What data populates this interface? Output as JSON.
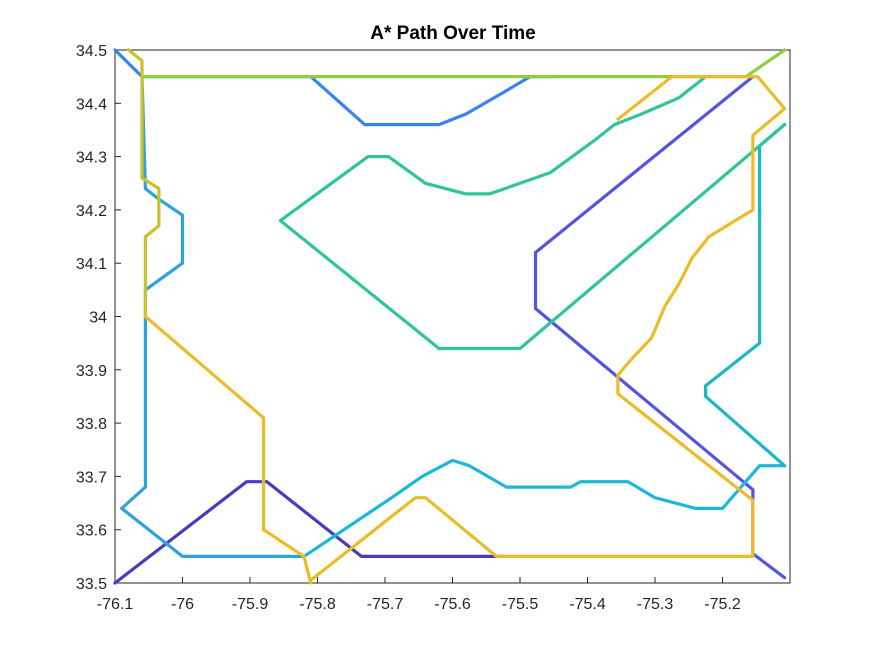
{
  "chart_data": {
    "type": "line",
    "title": "A* Path Over Time",
    "xlabel": "",
    "ylabel": "",
    "xlim": [
      -76.1,
      -75.1
    ],
    "ylim": [
      33.5,
      34.5
    ],
    "xticks": [
      -76.1,
      -76.0,
      -75.9,
      -75.8,
      -75.7,
      -75.6,
      -75.5,
      -75.4,
      -75.3,
      -75.2
    ],
    "xtick_labels": [
      "-76.1",
      "-76",
      "-75.9",
      "-75.8",
      "-75.7",
      "-75.6",
      "-75.5",
      "-75.4",
      "-75.3",
      "-75.2"
    ],
    "yticks": [
      33.5,
      33.6,
      33.7,
      33.8,
      33.9,
      34.0,
      34.1,
      34.2,
      34.3,
      34.4,
      34.5
    ],
    "ytick_labels": [
      "33.5",
      "33.6",
      "33.7",
      "33.8",
      "33.9",
      "34",
      "34.1",
      "34.2",
      "34.3",
      "34.4",
      "34.5"
    ],
    "grid": false,
    "legend": false,
    "series": [
      {
        "color": "#4a3bbd",
        "points": [
          [
            -76.1,
            33.5
          ],
          [
            -75.905,
            33.69
          ],
          [
            -75.875,
            33.69
          ],
          [
            -75.735,
            33.55
          ],
          [
            -75.525,
            33.55
          ]
        ]
      },
      {
        "color": "#5454e0",
        "points": [
          [
            -75.155,
            34.45
          ],
          [
            -75.477,
            34.12
          ],
          [
            -75.477,
            34.015
          ],
          [
            -75.155,
            33.675
          ],
          [
            -75.155,
            33.555
          ],
          [
            -75.108,
            33.51
          ]
        ]
      },
      {
        "color": "#3a82f0",
        "points": [
          [
            -76.1,
            34.5
          ],
          [
            -76.06,
            34.45
          ],
          [
            -75.81,
            34.45
          ],
          [
            -75.73,
            34.36
          ],
          [
            -75.62,
            34.36
          ],
          [
            -75.58,
            34.38
          ],
          [
            -75.525,
            34.42
          ],
          [
            -75.485,
            34.45
          ],
          [
            -75.45,
            34.45
          ]
        ]
      },
      {
        "color": "#2ea1e0",
        "points": [
          [
            -76.06,
            34.45
          ],
          [
            -76.055,
            34.24
          ],
          [
            -76.035,
            34.22
          ],
          [
            -76.0,
            34.19
          ],
          [
            -76.0,
            34.1
          ],
          [
            -76.055,
            34.05
          ],
          [
            -76.055,
            33.68
          ],
          [
            -76.09,
            33.64
          ],
          [
            -76.0,
            33.55
          ],
          [
            -75.82,
            33.55
          ]
        ]
      },
      {
        "color": "#1db7d9",
        "points": [
          [
            -75.82,
            33.55
          ],
          [
            -75.69,
            33.66
          ],
          [
            -75.645,
            33.7
          ],
          [
            -75.6,
            33.73
          ],
          [
            -75.575,
            33.72
          ],
          [
            -75.52,
            33.68
          ],
          [
            -75.425,
            33.68
          ],
          [
            -75.41,
            33.69
          ],
          [
            -75.34,
            33.69
          ],
          [
            -75.3,
            33.66
          ],
          [
            -75.24,
            33.64
          ],
          [
            -75.2,
            33.64
          ],
          [
            -75.145,
            33.72
          ],
          [
            -75.108,
            33.72
          ]
        ]
      },
      {
        "color": "#18b8c8",
        "points": [
          [
            -75.108,
            34.36
          ],
          [
            -75.145,
            34.32
          ],
          [
            -75.145,
            33.95
          ],
          [
            -75.225,
            33.87
          ],
          [
            -75.225,
            33.85
          ],
          [
            -75.108,
            33.72
          ]
        ]
      },
      {
        "color": "#2fc49a",
        "points": [
          [
            -75.108,
            34.36
          ],
          [
            -75.5,
            33.94
          ],
          [
            -75.62,
            33.94
          ],
          [
            -75.855,
            34.18
          ],
          [
            -75.725,
            34.3
          ],
          [
            -75.695,
            34.3
          ],
          [
            -75.64,
            34.25
          ],
          [
            -75.58,
            34.23
          ],
          [
            -75.545,
            34.23
          ],
          [
            -75.5,
            34.25
          ],
          [
            -75.455,
            34.27
          ],
          [
            -75.39,
            34.33
          ],
          [
            -75.36,
            34.36
          ],
          [
            -75.32,
            34.38
          ],
          [
            -75.265,
            34.41
          ],
          [
            -75.235,
            34.44
          ],
          [
            -75.225,
            34.45
          ]
        ]
      },
      {
        "color": "#8fce3c",
        "points": [
          [
            -75.108,
            34.5
          ],
          [
            -75.165,
            34.45
          ],
          [
            -76.06,
            34.45
          ]
        ]
      },
      {
        "color": "#c9c22a",
        "points": [
          [
            -76.08,
            34.5
          ],
          [
            -76.06,
            34.48
          ],
          [
            -76.06,
            34.26
          ],
          [
            -76.035,
            34.24
          ],
          [
            -76.035,
            34.17
          ],
          [
            -76.055,
            34.15
          ],
          [
            -76.055,
            34.0
          ]
        ]
      },
      {
        "color": "#ecbc28",
        "points": [
          [
            -76.055,
            34.0
          ],
          [
            -75.88,
            33.81
          ],
          [
            -75.88,
            33.6
          ],
          [
            -75.82,
            33.55
          ],
          [
            -75.81,
            33.5
          ],
          [
            -75.81,
            33.505
          ],
          [
            -75.655,
            33.66
          ],
          [
            -75.64,
            33.66
          ],
          [
            -75.535,
            33.55
          ],
          [
            -75.155,
            33.55
          ],
          [
            -75.155,
            33.655
          ],
          [
            -75.355,
            33.855
          ],
          [
            -75.355,
            33.89
          ],
          [
            -75.335,
            33.92
          ],
          [
            -75.305,
            33.96
          ],
          [
            -75.285,
            34.02
          ],
          [
            -75.265,
            34.06
          ],
          [
            -75.245,
            34.11
          ],
          [
            -75.22,
            34.15
          ],
          [
            -75.155,
            34.2
          ],
          [
            -75.155,
            34.34
          ],
          [
            -75.108,
            34.39
          ],
          [
            -75.148,
            34.45
          ],
          [
            -75.275,
            34.45
          ],
          [
            -75.355,
            34.37
          ]
        ]
      }
    ]
  }
}
